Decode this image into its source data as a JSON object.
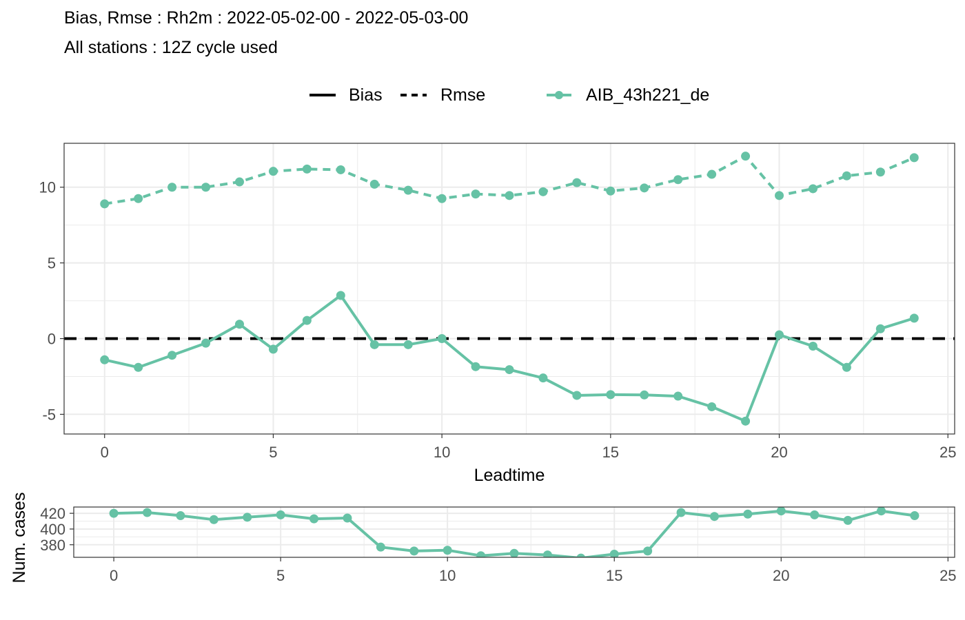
{
  "title_line1": "Bias, Rmse : Rh2m : 2022-05-02-00 - 2022-05-03-00",
  "title_line2": "All stations : 12Z cycle used",
  "legend": {
    "bias_label": "Bias",
    "rmse_label": "Rmse",
    "model_label": "AIB_43h221_de"
  },
  "colors": {
    "series": "#66c2a5",
    "zero_line": "#000000",
    "grid": "#ebebeb",
    "axis_text": "#4d4d4d"
  },
  "chart_data": [
    {
      "type": "line",
      "title": "Bias, Rmse : Rh2m : 2022-05-02-00 - 2022-05-03-00",
      "xlabel": "Leadtime",
      "ylabel": "",
      "xlim": [
        -1.2,
        25.2
      ],
      "ylim": [
        -6.3,
        12.9
      ],
      "xticks": [
        0,
        5,
        10,
        15,
        20,
        25
      ],
      "yticks": [
        -5,
        0,
        5,
        10
      ],
      "x": [
        0,
        1,
        2,
        3,
        4,
        5,
        6,
        7,
        8,
        9,
        10,
        11,
        12,
        13,
        14,
        15,
        16,
        17,
        18,
        19,
        20,
        21,
        22,
        23,
        24
      ],
      "series": [
        {
          "name": "AIB_43h221_de",
          "component": "Bias",
          "linestyle": "solid",
          "values": [
            -1.4,
            -1.9,
            -1.1,
            -0.3,
            0.95,
            -0.7,
            1.2,
            2.85,
            -0.4,
            -0.4,
            0.0,
            -1.85,
            -2.05,
            -2.6,
            -3.75,
            -3.7,
            -3.72,
            -3.8,
            -4.5,
            -5.45,
            0.25,
            -0.5,
            -1.9,
            0.65,
            1.35
          ]
        },
        {
          "name": "AIB_43h221_de",
          "component": "Rmse",
          "linestyle": "dashed",
          "values": [
            8.9,
            9.25,
            10.0,
            10.0,
            10.35,
            11.05,
            11.2,
            11.15,
            10.2,
            9.8,
            9.25,
            9.55,
            9.45,
            9.7,
            10.3,
            9.75,
            9.95,
            10.5,
            10.85,
            12.05,
            9.45,
            9.9,
            10.75,
            11.0,
            11.95
          ]
        }
      ],
      "reference_line": {
        "y": 0,
        "style": "dashed"
      }
    },
    {
      "type": "line",
      "xlabel": "",
      "ylabel": "Num. cases",
      "xlim": [
        -1.2,
        25.2
      ],
      "ylim": [
        364,
        428
      ],
      "xticks": [
        0,
        5,
        10,
        15,
        20,
        25
      ],
      "yticks": [
        380,
        400,
        420
      ],
      "x": [
        0,
        1,
        2,
        3,
        4,
        5,
        6,
        7,
        8,
        9,
        10,
        11,
        12,
        13,
        14,
        15,
        16,
        17,
        18,
        19,
        20,
        21,
        22,
        23,
        24
      ],
      "series": [
        {
          "name": "AIB_43h221_de",
          "values": [
            420,
            421,
            417,
            412,
            415,
            418,
            413,
            414,
            377,
            372,
            373,
            366,
            369,
            367,
            363,
            368,
            372,
            421,
            416,
            419,
            423,
            418,
            411,
            423,
            417
          ]
        }
      ]
    }
  ]
}
